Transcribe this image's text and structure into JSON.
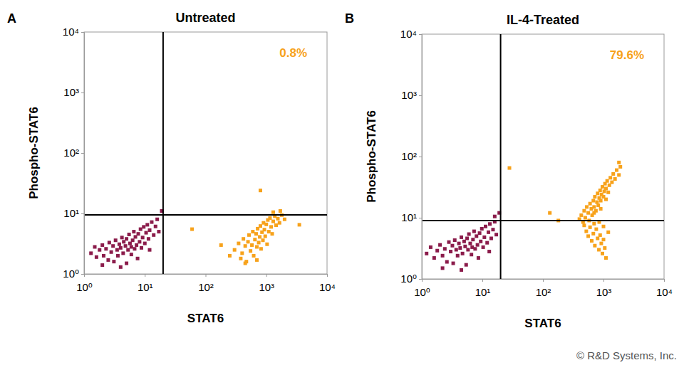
{
  "credit": "© R&D Systems, Inc.",
  "chart_data": [
    {
      "type": "scatter",
      "panel_label": "A",
      "title": "Untreated",
      "x_label": "STAT6",
      "y_label": "Phospho-STAT6",
      "log": true,
      "grid": false,
      "xlim": [
        1,
        10000
      ],
      "ylim": [
        1,
        10000
      ],
      "xticks": [
        {
          "value": 1,
          "label": "10⁰"
        },
        {
          "value": 10,
          "label": "10¹"
        },
        {
          "value": 100,
          "label": "10²"
        },
        {
          "value": 1000,
          "label": "10³"
        },
        {
          "value": 10000,
          "label": "10⁴"
        }
      ],
      "yticks": [
        {
          "value": 1,
          "label": "10⁰"
        },
        {
          "value": 10,
          "label": "10¹"
        },
        {
          "value": 100,
          "label": "10²"
        },
        {
          "value": 1000,
          "label": "10³"
        },
        {
          "value": 10000,
          "label": "10⁴"
        }
      ],
      "quadrant_x": 20,
      "quadrant_y": 9.5,
      "annotations": [
        {
          "text": "0.8%",
          "color": "#f7a21b"
        }
      ],
      "series": [
        {
          "color": "#8b1c4b",
          "x": [
            1.3,
            1.5,
            1.6,
            1.8,
            2.0,
            2.1,
            2.3,
            2.5,
            2.6,
            2.8,
            3.0,
            3.1,
            3.3,
            3.5,
            3.6,
            3.8,
            4.0,
            4.2,
            4.4,
            4.5,
            4.8,
            5.0,
            5.0,
            5.3,
            5.5,
            5.7,
            6.0,
            6.0,
            6.3,
            6.6,
            6.8,
            7.0,
            7.3,
            7.6,
            7.8,
            8.2,
            8.5,
            8.8,
            9.2,
            9.6,
            10,
            10.5,
            11,
            11.5,
            12,
            13,
            14,
            15,
            16,
            17,
            4.0,
            2.0,
            12,
            19
          ],
          "values": [
            2.2,
            2.8,
            1.9,
            2.5,
            3.0,
            2.0,
            2.6,
            1.7,
            3.3,
            2.3,
            2.9,
            1.6,
            3.6,
            2.5,
            2.0,
            3.1,
            2.7,
            4.0,
            2.2,
            3.4,
            2.9,
            1.5,
            3.8,
            2.5,
            4.5,
            3.2,
            2.1,
            2.8,
            3.6,
            5.0,
            2.6,
            4.1,
            3.0,
            1.8,
            4.6,
            3.4,
            5.5,
            2.7,
            4.0,
            6.0,
            3.2,
            4.8,
            6.5,
            3.8,
            5.3,
            7.2,
            4.4,
            6.1,
            8.0,
            5.0,
            1.3,
            1.4,
            2.5,
            11
          ]
        },
        {
          "color": "#f7a21b",
          "x": [
            300,
            350,
            380,
            400,
            420,
            450,
            470,
            500,
            520,
            550,
            580,
            600,
            620,
            650,
            680,
            700,
            720,
            750,
            780,
            800,
            820,
            850,
            880,
            900,
            930,
            960,
            1000,
            1030,
            1060,
            1100,
            1150,
            1200,
            1250,
            1300,
            1380,
            1450,
            1550,
            1650,
            1800,
            2000,
            450,
            700,
            250,
            180,
            60,
            3500,
            800,
            1300,
            1700
          ],
          "values": [
            2.5,
            3.2,
            1.8,
            2.2,
            3.8,
            2.9,
            1.6,
            3.4,
            4.4,
            2.4,
            3.0,
            5.0,
            2.0,
            3.7,
            4.6,
            2.8,
            5.6,
            3.3,
            4.1,
            6.2,
            2.6,
            4.9,
            3.6,
            7.0,
            5.4,
            4.2,
            6.6,
            3.1,
            7.8,
            5.0,
            8.4,
            6.0,
            4.6,
            7.4,
            9.0,
            6.4,
            8.2,
            7.0,
            9.4,
            8.0,
            1.5,
            1.7,
            2.0,
            3.0,
            5.5,
            6.5,
            24,
            10.5,
            11
          ]
        }
      ]
    },
    {
      "type": "scatter",
      "panel_label": "B",
      "title": "IL-4-Treated",
      "x_label": "STAT6",
      "y_label": "Phospho-STAT6",
      "log": true,
      "grid": false,
      "xlim": [
        1,
        10000
      ],
      "ylim": [
        1,
        10000
      ],
      "xticks": [
        {
          "value": 1,
          "label": "10⁰"
        },
        {
          "value": 10,
          "label": "10¹"
        },
        {
          "value": 100,
          "label": "10²"
        },
        {
          "value": 1000,
          "label": "10³"
        },
        {
          "value": 10000,
          "label": "10⁴"
        }
      ],
      "yticks": [
        {
          "value": 1,
          "label": "10⁰"
        },
        {
          "value": 10,
          "label": "10¹"
        },
        {
          "value": 100,
          "label": "10²"
        },
        {
          "value": 1000,
          "label": "10³"
        },
        {
          "value": 10000,
          "label": "10⁴"
        }
      ],
      "quadrant_x": 20,
      "quadrant_y": 9,
      "annotations": [
        {
          "text": "79.6%",
          "color": "#f7a21b"
        }
      ],
      "series": [
        {
          "color": "#8b1c4b",
          "x": [
            1.2,
            1.4,
            1.6,
            1.8,
            2.0,
            2.2,
            2.4,
            2.6,
            2.8,
            3.0,
            3.2,
            3.3,
            3.5,
            3.7,
            3.9,
            4.1,
            4.3,
            4.5,
            4.7,
            5.0,
            5.2,
            5.4,
            5.6,
            5.8,
            6.0,
            6.3,
            6.6,
            6.8,
            7.0,
            7.3,
            7.6,
            8.0,
            8.3,
            8.6,
            9.0,
            9.4,
            9.8,
            10.3,
            10.8,
            11.3,
            12,
            12.6,
            13.3,
            14,
            15,
            16,
            17,
            4.5,
            2.2,
            13,
            16,
            19
          ],
          "values": [
            2.6,
            3.3,
            2.2,
            2.9,
            3.6,
            2.4,
            3.1,
            1.9,
            4.0,
            2.8,
            3.5,
            1.8,
            4.3,
            3.0,
            2.4,
            3.8,
            3.2,
            4.8,
            2.6,
            4.1,
            3.4,
            1.7,
            4.6,
            3.0,
            5.4,
            3.8,
            2.5,
            3.3,
            4.4,
            6.0,
            3.1,
            5.0,
            3.6,
            2.2,
            5.6,
            4.1,
            6.6,
            3.3,
            4.8,
            7.2,
            3.9,
            5.8,
            7.9,
            4.6,
            6.4,
            8.6,
            5.3,
            1.4,
            1.5,
            2.8,
            10.5,
            12
          ]
        },
        {
          "color": "#f7a21b",
          "x": [
            400,
            430,
            460,
            480,
            500,
            530,
            560,
            580,
            600,
            630,
            650,
            680,
            700,
            720,
            750,
            780,
            800,
            820,
            850,
            880,
            900,
            930,
            960,
            1000,
            1030,
            1060,
            1100,
            1150,
            1200,
            1250,
            1300,
            1380,
            1450,
            1550,
            1650,
            1800,
            1900,
            700,
            900,
            1100,
            480,
            520,
            560,
            600,
            640,
            680,
            720,
            760,
            800,
            840,
            880,
            920,
            960,
            1000,
            1050,
            1100,
            700,
            850,
            1000,
            1200,
            180,
            130,
            1800,
            28
          ],
          "values": [
            9.5,
            11,
            8.5,
            13,
            10,
            15,
            12,
            9,
            17,
            14,
            11,
            19,
            15,
            22,
            13,
            18,
            25,
            16,
            21,
            28,
            19,
            24,
            32,
            22,
            27,
            36,
            30,
            40,
            26,
            34,
            45,
            38,
            52,
            43,
            60,
            50,
            68,
            12,
            14,
            20,
            7.5,
            6,
            5,
            7,
            4.2,
            5.5,
            3.5,
            6.5,
            4.6,
            3,
            5.2,
            3.8,
            2.6,
            4.4,
            3.2,
            2.2,
            8,
            8.5,
            7.2,
            5.8,
            9,
            12,
            80,
            65
          ]
        }
      ]
    }
  ]
}
